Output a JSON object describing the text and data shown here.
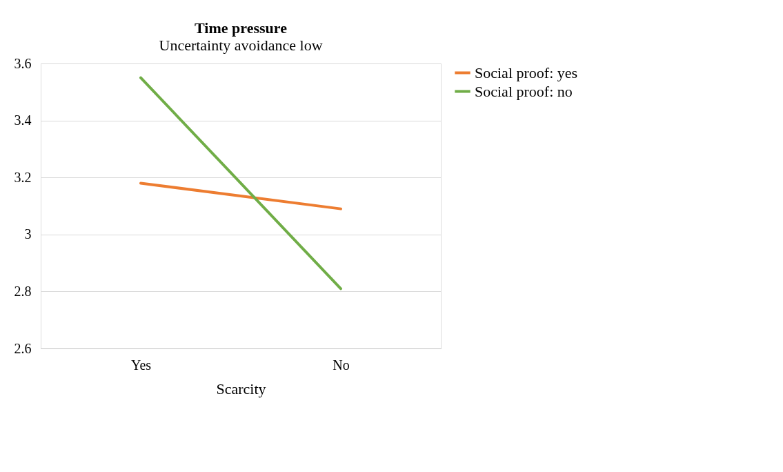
{
  "chart_data": {
    "type": "line",
    "title": "Time pressure",
    "subtitle": "Uncertainty avoidance low",
    "xlabel": "Scarcity",
    "categories": [
      "Yes",
      "No"
    ],
    "series": [
      {
        "name": "Social proof: yes",
        "color": "#ed7d31",
        "values": [
          3.18,
          3.09
        ]
      },
      {
        "name": "Social proof: no",
        "color": "#70ad47",
        "values": [
          3.55,
          2.81
        ]
      }
    ],
    "ylim": [
      2.6,
      3.6
    ],
    "yticks": [
      2.6,
      2.8,
      3,
      3.2,
      3.4,
      3.6
    ],
    "grid": "y",
    "legend": "right",
    "marker": "none",
    "line_style": "solid"
  }
}
